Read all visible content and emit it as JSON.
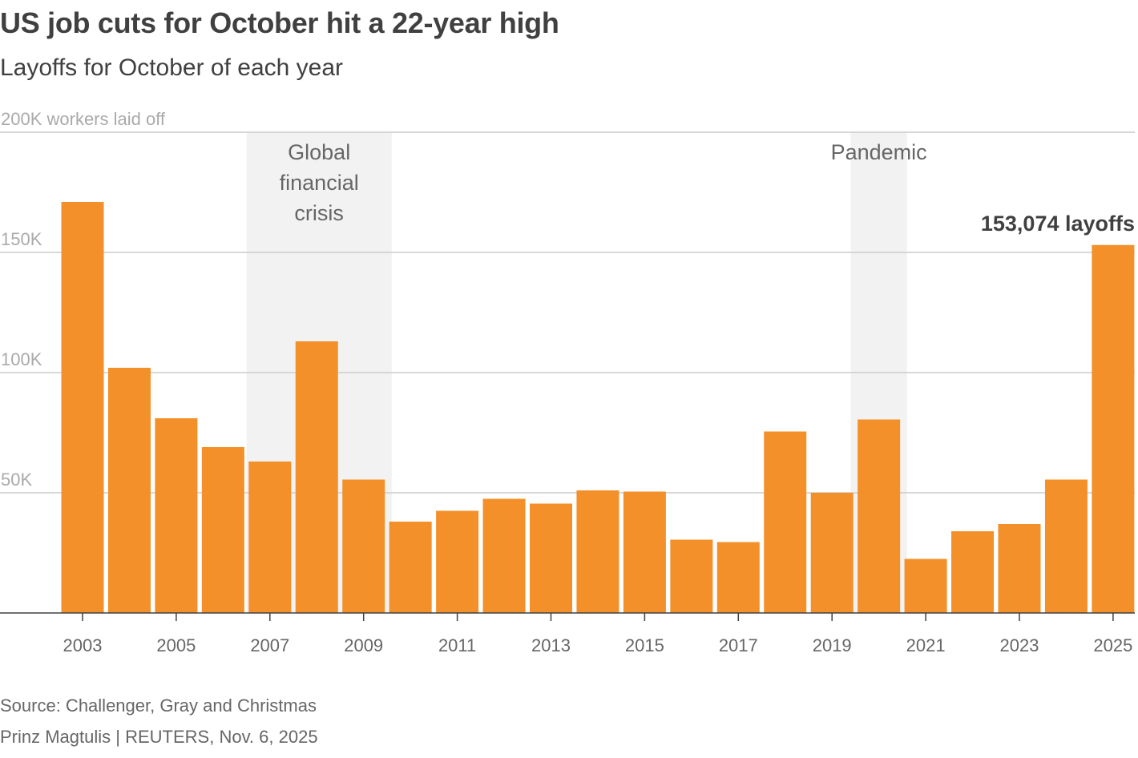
{
  "chart_data": {
    "type": "bar",
    "title": "US job cuts for October hit a 22-year high",
    "subtitle": "Layoffs for October of each year",
    "unit_label": "workers laid off",
    "x": [
      2003,
      2004,
      2005,
      2006,
      2007,
      2008,
      2009,
      2010,
      2011,
      2012,
      2013,
      2014,
      2015,
      2016,
      2017,
      2018,
      2019,
      2020,
      2021,
      2022,
      2023,
      2024,
      2025
    ],
    "values": [
      171000,
      102000,
      81000,
      69000,
      63000,
      113000,
      55500,
      38000,
      42500,
      47500,
      45500,
      51000,
      50500,
      30500,
      29500,
      75500,
      50000,
      80500,
      22500,
      34000,
      37000,
      55500,
      153074
    ],
    "x_tick_labels": [
      "2003",
      "2005",
      "2007",
      "2009",
      "2011",
      "2013",
      "2015",
      "2017",
      "2019",
      "2021",
      "2023",
      "2025"
    ],
    "y_ticks": [
      {
        "value": 50000,
        "label": "50K"
      },
      {
        "value": 100000,
        "label": "100K"
      },
      {
        "value": 150000,
        "label": "150K"
      },
      {
        "value": 200000,
        "label": "200K"
      }
    ],
    "ylim": [
      0,
      200000
    ],
    "grid": true,
    "bar_color": "#f39029",
    "shade_color": "#f2f2f2",
    "shaded_periods": [
      {
        "label_lines": [
          "Global",
          "financial",
          "crisis"
        ],
        "from": 2006.5,
        "to": 2009.6
      },
      {
        "label_lines": [
          "Pandemic"
        ],
        "from": 2019.4,
        "to": 2020.6
      }
    ],
    "callout": {
      "year": 2025,
      "text": "153,074 layoffs"
    }
  },
  "footer": {
    "source": "Source: Challenger, Gray and Christmas",
    "credit": "Prinz Magtulis | REUTERS, Nov. 6, 2025"
  }
}
